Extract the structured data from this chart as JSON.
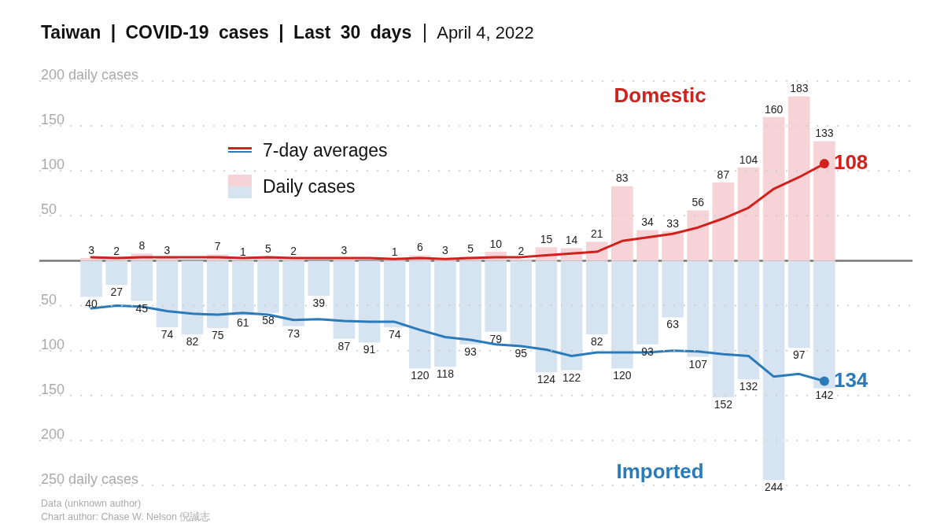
{
  "chart_data": {
    "type": "bar",
    "title": "Taiwan | COVID-19 cases | Last 30 days",
    "subtitle": "April 4, 2022",
    "categories": [
      null,
      null,
      null,
      null,
      null,
      null,
      null,
      null,
      null,
      null,
      null,
      null,
      null,
      null,
      null,
      null,
      null,
      null,
      null,
      null,
      null,
      null,
      null,
      null,
      null,
      null,
      null,
      null,
      null,
      null
    ],
    "series": [
      {
        "name": "Domestic",
        "color": "#f6d3d6",
        "values": [
          3,
          2,
          8,
          3,
          0,
          7,
          1,
          5,
          2,
          0,
          3,
          0,
          1,
          6,
          3,
          5,
          10,
          2,
          15,
          14,
          21,
          83,
          34,
          33,
          56,
          87,
          104,
          160,
          183,
          133
        ],
        "value_labels": [
          "3",
          "2",
          "8",
          "3",
          null,
          "7",
          "1",
          "5",
          "2",
          null,
          "3",
          null,
          "1",
          "6",
          "3",
          "5",
          "10",
          "2",
          "15",
          "14",
          "21",
          "83",
          "34",
          "33",
          "56",
          "87",
          "104",
          "160",
          "183",
          "133"
        ]
      },
      {
        "name": "Imported",
        "axis": "y2",
        "color": "#d6e4f1",
        "values": [
          40,
          27,
          45,
          74,
          82,
          75,
          61,
          58,
          73,
          39,
          87,
          91,
          74,
          120,
          118,
          93,
          79,
          95,
          124,
          122,
          82,
          120,
          93,
          63,
          107,
          152,
          132,
          244,
          97,
          142
        ],
        "value_labels": [
          "40",
          "27",
          "45",
          "74",
          "82",
          "75",
          "61",
          "58",
          "73",
          "39",
          "87",
          "91",
          "74",
          "120",
          "118",
          "93",
          "79",
          "95",
          "124",
          "122",
          "82",
          "120",
          "93",
          "63",
          "107",
          "152",
          "132",
          "244",
          "97",
          "142"
        ]
      },
      {
        "type": "line",
        "color": "#d0211c",
        "values": [
          4,
          3,
          4,
          4,
          4,
          4,
          3,
          4,
          3,
          3,
          3,
          3,
          2,
          3,
          2,
          3,
          4,
          4,
          6,
          8,
          10,
          22,
          26,
          30,
          37,
          47,
          59,
          80,
          93,
          108
        ],
        "value_labels": [
          null,
          null,
          null,
          null,
          null,
          null,
          null,
          null,
          null,
          null,
          null,
          null,
          null,
          null,
          null,
          null,
          null,
          null,
          null,
          null,
          null,
          null,
          null,
          null,
          null,
          null,
          null,
          null,
          null,
          "108"
        ]
      },
      {
        "type": "line",
        "axis": "y2",
        "color": "#2b7bba",
        "values": [
          53,
          50,
          51,
          56,
          59,
          60,
          58,
          60,
          66,
          65,
          67,
          68,
          68,
          77,
          85,
          88,
          93,
          95,
          99,
          106,
          102,
          102,
          102,
          100,
          101,
          104,
          106,
          129,
          126,
          134
        ],
        "value_labels": [
          null,
          null,
          null,
          null,
          null,
          null,
          null,
          null,
          null,
          null,
          null,
          null,
          null,
          null,
          null,
          null,
          null,
          null,
          null,
          null,
          null,
          null,
          null,
          null,
          null,
          null,
          null,
          null,
          null,
          "134"
        ]
      }
    ],
    "ylim": [
      -250,
      200
    ],
    "yticks": [
      {
        "value": 200,
        "label": "200 daily cases"
      },
      150,
      100,
      50
    ],
    "y2lim": [
      250,
      -200
    ],
    "y2ticks": [
      50,
      100,
      150,
      200,
      {
        "value": 250,
        "label": "250 daily cases"
      }
    ],
    "grid": "y",
    "line_style": "solid",
    "stacked": true,
    "annotations": [
      "7-day averages",
      "Daily cases",
      "Data (unknown author)",
      "Chart author: Chase W. Nelson 倪誠志"
    ]
  }
}
